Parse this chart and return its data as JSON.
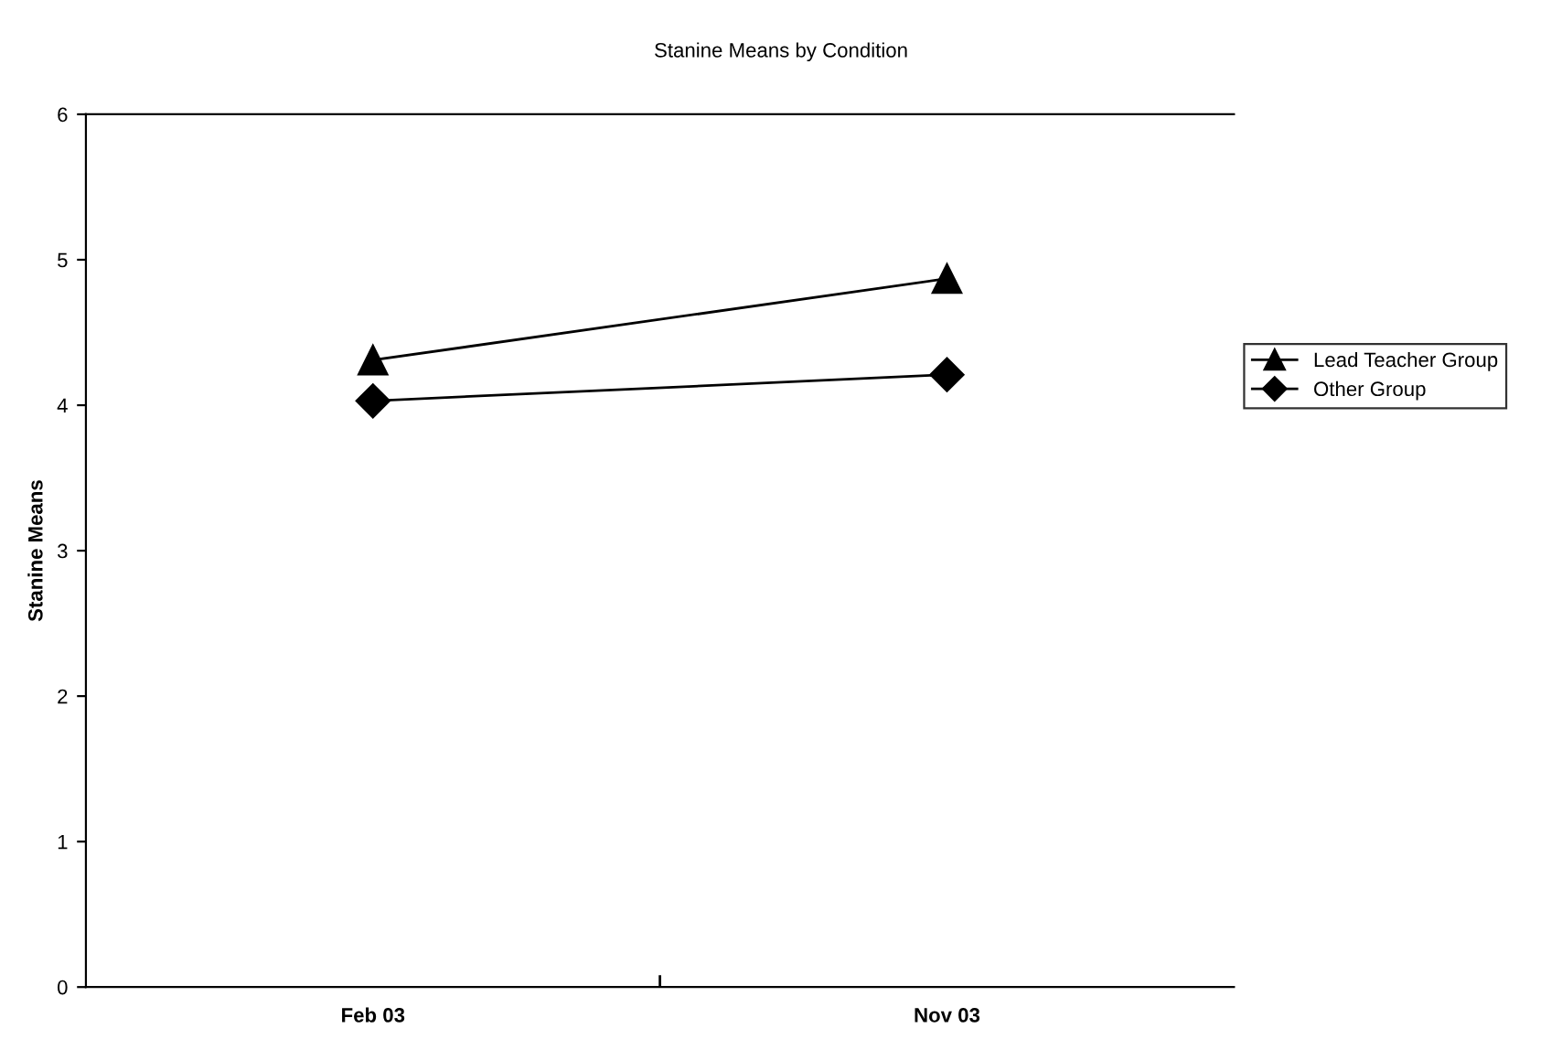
{
  "chart_data": {
    "type": "line",
    "title": "Stanine Means by Condition",
    "ylabel": "Stanine Means",
    "categories": [
      "Feb 03",
      "Nov 03"
    ],
    "series": [
      {
        "name": "Lead Teacher Group",
        "color": "#000000",
        "marker": "triangle",
        "values": [
          4.31,
          4.87
        ]
      },
      {
        "name": "Other Group",
        "color": "#000000",
        "marker": "diamond",
        "values": [
          4.03,
          4.21
        ]
      }
    ],
    "ylim": [
      0,
      6
    ],
    "yticks": [
      0,
      1,
      2,
      3,
      4,
      5,
      6
    ],
    "grid": false,
    "legend": "right",
    "line_style": "solid"
  }
}
